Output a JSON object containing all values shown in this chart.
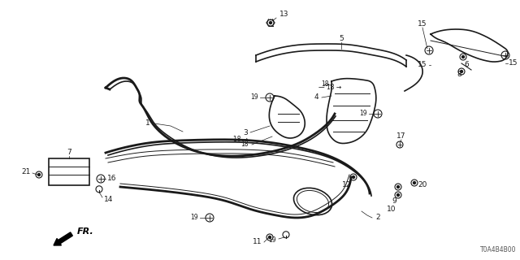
{
  "bg_color": "#ffffff",
  "fig_width": 6.4,
  "fig_height": 3.2,
  "dpi": 100,
  "line_color": "#1a1a1a",
  "label_color": "#1a1a1a",
  "label_fontsize": 6.5,
  "diagram_note": "T0A4B4B00",
  "fr_label": "FR."
}
